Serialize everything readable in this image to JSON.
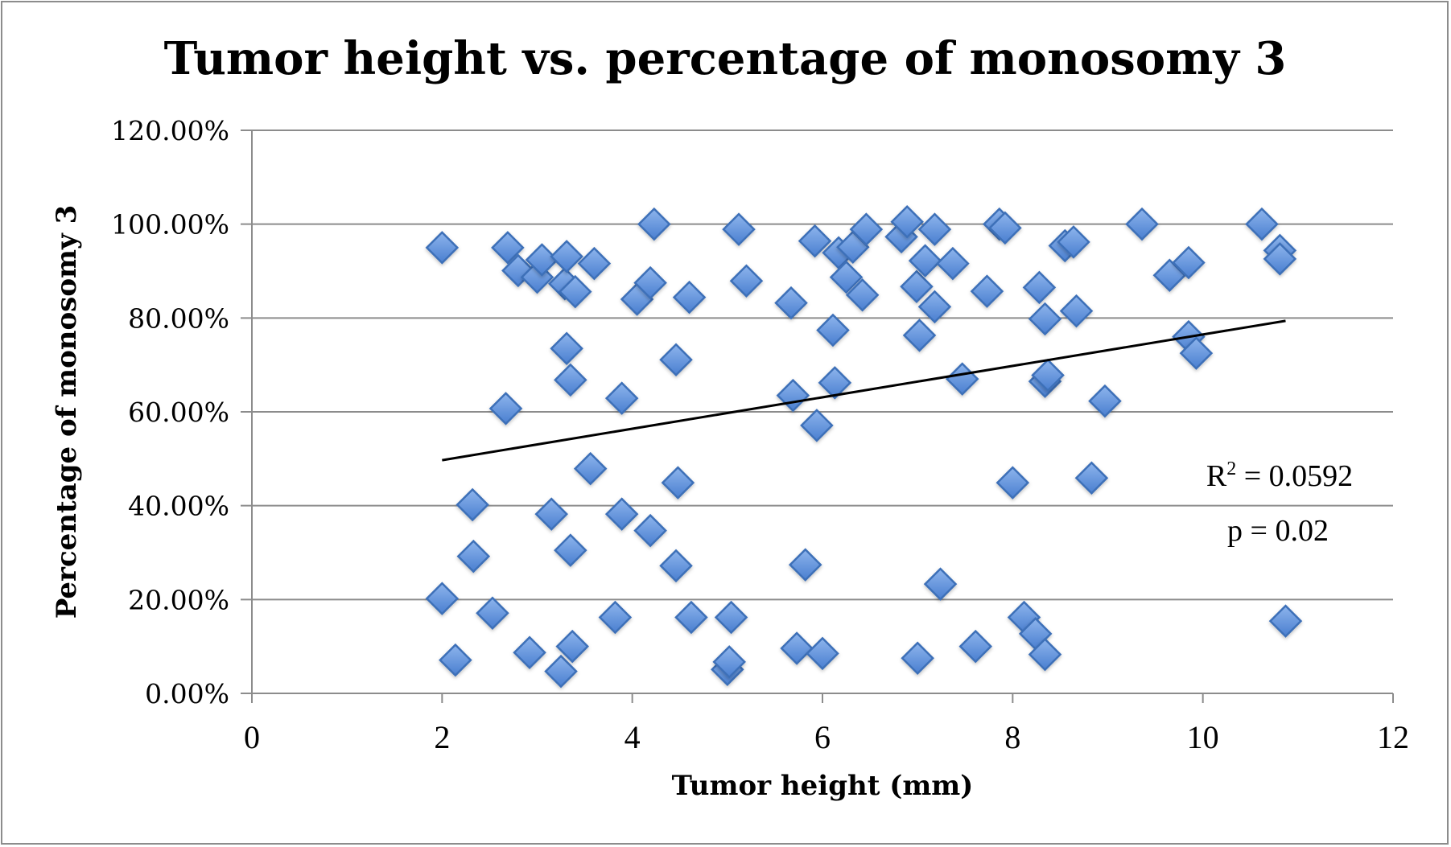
{
  "chart_data": {
    "type": "scatter",
    "title": "Tumor height vs. percentage of monosomy 3",
    "xlabel": "Tumor height (mm)",
    "ylabel": "Percentage of monosomy 3",
    "xlim": [
      0,
      12
    ],
    "ylim": [
      0,
      120
    ],
    "x_ticks": [
      0,
      2,
      4,
      6,
      8,
      10,
      12
    ],
    "x_tick_labels": [
      "0",
      "2",
      "4",
      "6",
      "8",
      "10",
      "12"
    ],
    "y_ticks": [
      0,
      20,
      40,
      60,
      80,
      100,
      120
    ],
    "y_tick_labels": [
      "0.00%",
      "20.00%",
      "40.00%",
      "60.00%",
      "80.00%",
      "100.00%",
      "120.00%"
    ],
    "grid": "horizontal",
    "legend": "none",
    "series": [
      {
        "name": "Percentage of monosomy 3",
        "marker": "diamond",
        "color": "#4f81bd",
        "points": [
          [
            2.0,
            95.0
          ],
          [
            2.0,
            20.2
          ],
          [
            2.14,
            7.1
          ],
          [
            2.32,
            40.2
          ],
          [
            2.33,
            29.2
          ],
          [
            2.53,
            17.1
          ],
          [
            2.67,
            60.7
          ],
          [
            2.69,
            95.0
          ],
          [
            2.8,
            90.1
          ],
          [
            2.92,
            8.7
          ],
          [
            3.0,
            88.7
          ],
          [
            3.05,
            92.4
          ],
          [
            3.15,
            38.2
          ],
          [
            3.25,
            4.7
          ],
          [
            3.29,
            87.3
          ],
          [
            3.31,
            93.1
          ],
          [
            3.31,
            73.5
          ],
          [
            3.35,
            66.8
          ],
          [
            3.35,
            30.5
          ],
          [
            3.37,
            10.0
          ],
          [
            3.4,
            85.6
          ],
          [
            3.56,
            47.9
          ],
          [
            3.6,
            91.6
          ],
          [
            3.82,
            16.2
          ],
          [
            3.89,
            62.9
          ],
          [
            3.89,
            38.2
          ],
          [
            4.05,
            84.0
          ],
          [
            4.19,
            87.5
          ],
          [
            4.19,
            34.7
          ],
          [
            4.23,
            100.0
          ],
          [
            4.46,
            71.1
          ],
          [
            4.46,
            27.2
          ],
          [
            4.48,
            44.9
          ],
          [
            4.6,
            84.4
          ],
          [
            4.62,
            16.2
          ],
          [
            5.0,
            5.1
          ],
          [
            5.02,
            6.7
          ],
          [
            5.04,
            16.2
          ],
          [
            5.12,
            98.9
          ],
          [
            5.2,
            87.9
          ],
          [
            5.67,
            83.2
          ],
          [
            5.69,
            63.5
          ],
          [
            5.73,
            9.6
          ],
          [
            5.82,
            27.4
          ],
          [
            5.92,
            96.4
          ],
          [
            5.94,
            57.1
          ],
          [
            6.0,
            8.5
          ],
          [
            6.11,
            77.4
          ],
          [
            6.13,
            66.2
          ],
          [
            6.17,
            93.9
          ],
          [
            6.25,
            88.7
          ],
          [
            6.32,
            95.1
          ],
          [
            6.42,
            84.9
          ],
          [
            6.46,
            98.9
          ],
          [
            6.83,
            97.3
          ],
          [
            6.89,
            100.5
          ],
          [
            6.99,
            86.7
          ],
          [
            7.0,
            7.5
          ],
          [
            7.02,
            76.3
          ],
          [
            7.08,
            92.2
          ],
          [
            7.18,
            98.9
          ],
          [
            7.18,
            82.4
          ],
          [
            7.24,
            23.3
          ],
          [
            7.37,
            91.6
          ],
          [
            7.47,
            67.0
          ],
          [
            7.61,
            10.0
          ],
          [
            7.73,
            85.7
          ],
          [
            7.86,
            100.0
          ],
          [
            7.92,
            99.2
          ],
          [
            8.0,
            44.9
          ],
          [
            8.12,
            16.2
          ],
          [
            8.24,
            12.7
          ],
          [
            8.28,
            86.5
          ],
          [
            8.34,
            79.8
          ],
          [
            8.34,
            66.5
          ],
          [
            8.37,
            67.8
          ],
          [
            8.34,
            8.3
          ],
          [
            8.55,
            95.4
          ],
          [
            8.64,
            96.2
          ],
          [
            8.67,
            81.5
          ],
          [
            8.83,
            45.9
          ],
          [
            8.97,
            62.3
          ],
          [
            9.36,
            100.0
          ],
          [
            9.65,
            89.1
          ],
          [
            9.85,
            91.8
          ],
          [
            9.85,
            76.0
          ],
          [
            9.93,
            72.5
          ],
          [
            10.62,
            100.0
          ],
          [
            10.81,
            94.4
          ],
          [
            10.81,
            92.6
          ],
          [
            10.87,
            15.4
          ]
        ]
      }
    ],
    "trendline": {
      "type": "linear",
      "x_range": [
        2.0,
        10.87
      ],
      "start": [
        2.0,
        49.7
      ],
      "end": [
        10.87,
        79.4
      ],
      "color": "#000000"
    },
    "annotations": [
      {
        "text_main": "R",
        "text_sup": "2",
        "text_rest": " = 0.0592",
        "label": "R² = 0.0592"
      },
      {
        "label": "p = 0.02"
      }
    ]
  },
  "colors": {
    "marker_fill": "#5b8fd9",
    "marker_fill_light": "#8db4ec",
    "marker_stroke": "#3d6fb8",
    "grid": "#8c8c8c",
    "axis": "#8c8c8c"
  }
}
